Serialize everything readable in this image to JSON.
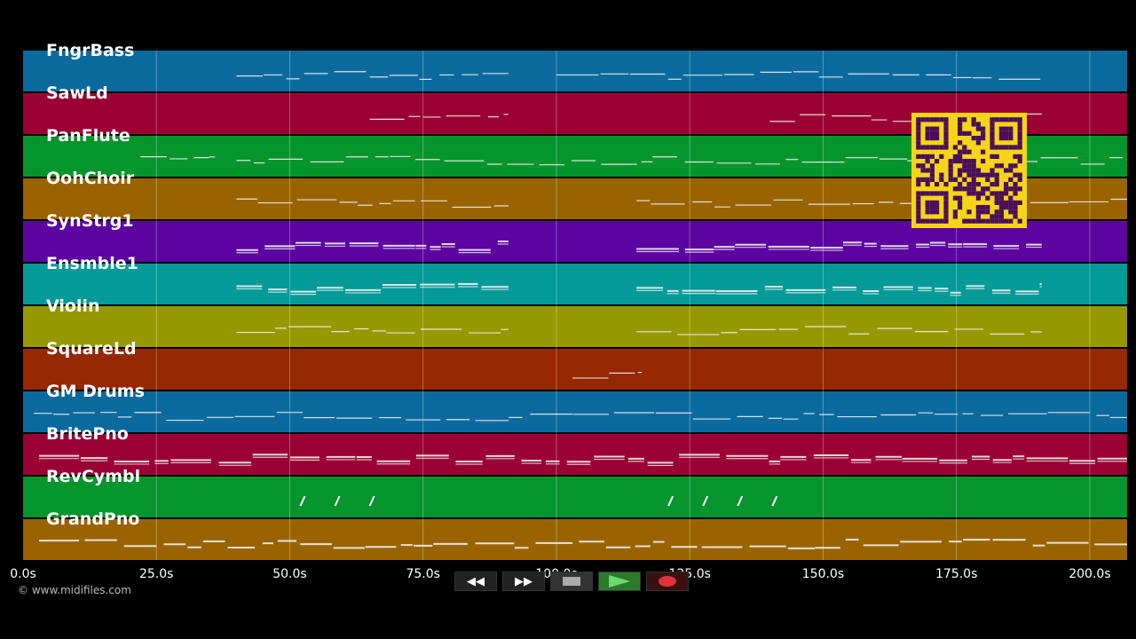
{
  "tracks": [
    {
      "name": "FngrBass",
      "color": "#0a6a9e"
    },
    {
      "name": "SawLd",
      "color": "#9a0033"
    },
    {
      "name": "PanFlute",
      "color": "#06942c"
    },
    {
      "name": "OohChoir",
      "color": "#996400"
    },
    {
      "name": "SynStrg1",
      "color": "#5c04a0"
    },
    {
      "name": "Ensmble1",
      "color": "#039a98"
    },
    {
      "name": "Violin",
      "color": "#979800"
    },
    {
      "name": "SquareLd",
      "color": "#962800"
    },
    {
      "name": "GM Drums",
      "color": "#0a6a9e"
    },
    {
      "name": "BritePno",
      "color": "#9a0033"
    },
    {
      "name": "RevCymbl",
      "color": "#06942c"
    },
    {
      "name": "GrandPno",
      "color": "#996400"
    }
  ],
  "time_axis": {
    "ticks": [
      "0.0s",
      "25.0s",
      "50.0s",
      "75.0s",
      "100.0s",
      "125.0s",
      "150.0s",
      "175.0s",
      "200.0s"
    ],
    "tick_values": [
      0,
      25,
      50,
      75,
      100,
      125,
      150,
      175,
      200
    ],
    "max_seconds": 207
  },
  "copyright": "© www.midifiles.com",
  "transport": {
    "rewind_icon": "rewind-icon",
    "forward_icon": "fast-forward-icon",
    "stop_icon": "stop-icon",
    "play_icon": "play-icon",
    "record_icon": "record-icon"
  },
  "qr_icon": "qr-code-icon",
  "colors": {
    "background": "#000000",
    "note": "#ffffff",
    "qr_bg": "#f5d515",
    "qr_fg": "#4a0e5c"
  }
}
